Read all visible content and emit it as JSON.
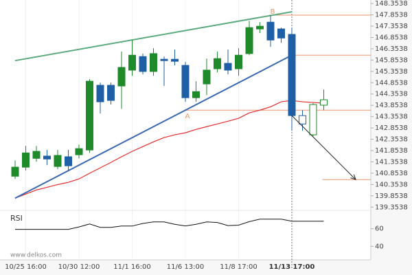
{
  "chart_data": {
    "type": "candlestick",
    "categories": [
      null,
      "10/25 16:00",
      null,
      null,
      null,
      null,
      "10/30 12:00",
      null,
      null,
      null,
      null,
      "11/1 16:00",
      null,
      null,
      null,
      null,
      "11/6 13:00",
      null,
      null,
      null,
      null,
      "11/8 17:00",
      null,
      null,
      null,
      null,
      "11/13 17:00",
      null,
      null,
      null
    ],
    "open": [
      140.72,
      141.12,
      141.51,
      141.61,
      141.15,
      141.58,
      141.67,
      141.88,
      144.74,
      144.74,
      144.71,
      145.41,
      146.01,
      145.35,
      145.89,
      145.89,
      145.62,
      144.19,
      144.8,
      145.47,
      145.71,
      145.47,
      146.14,
      147.23,
      147.53,
      147.23,
      146.99,
      143.4,
      142.55,
      143.86
    ],
    "high": [
      141.42,
      142.06,
      142.06,
      141.88,
      141.88,
      141.88,
      142.12,
      145.01,
      144.86,
      144.86,
      146.23,
      146.74,
      146.14,
      146.38,
      146.01,
      146.32,
      145.77,
      144.92,
      145.92,
      146.23,
      146.32,
      146.38,
      147.59,
      147.53,
      147.84,
      147.29,
      147.29,
      143.64,
      143.95,
      144.55
    ],
    "low": [
      140.6,
      140.97,
      141.36,
      141.21,
      141.03,
      140.97,
      141.51,
      141.75,
      143.49,
      143.89,
      143.7,
      145.16,
      145.22,
      145.16,
      144.71,
      145.62,
      144.01,
      144.01,
      144.31,
      145.31,
      145.22,
      145.16,
      146.07,
      147.05,
      146.44,
      146.62,
      142.73,
      142.73,
      142.49,
      143.64
    ],
    "close": [
      141.12,
      141.75,
      141.82,
      141.48,
      141.64,
      141.18,
      141.94,
      144.92,
      144.01,
      144.07,
      145.53,
      146.07,
      145.35,
      146.14,
      145.83,
      145.8,
      144.19,
      144.46,
      145.41,
      145.92,
      145.41,
      146.07,
      147.29,
      147.35,
      146.74,
      146.83,
      143.4,
      143.03,
      143.89,
      144.1
    ],
    "up_color": "#1e8a2a",
    "down_color": "#1f5fa6",
    "hollow_last": 3,
    "moving_average": {
      "color": "#e52b2b",
      "values": [
        139.75,
        139.93,
        140.11,
        140.23,
        140.35,
        140.45,
        140.6,
        140.85,
        141.09,
        141.33,
        141.58,
        141.82,
        142.03,
        142.24,
        142.43,
        142.55,
        142.64,
        142.79,
        142.91,
        143.03,
        143.15,
        143.28,
        143.52,
        143.64,
        143.79,
        144.01,
        144.07,
        144.01,
        143.98,
        143.95
      ]
    },
    "resistance": {
      "color": "#5aaa7e",
      "from": [
        0,
        145.83
      ],
      "to": [
        26,
        147.99
      ]
    },
    "support": {
      "color": "#3a68b0",
      "from": [
        0,
        139.75
      ],
      "to": [
        26,
        146.07
      ]
    },
    "levels": [
      {
        "value": 147.84,
        "from_index": 24,
        "label": "B"
      },
      {
        "value": 146.07,
        "from_index": 26
      },
      {
        "value": 143.64,
        "from_index": 16,
        "label": "A"
      },
      {
        "value": 140.57,
        "from_index": 29
      }
    ],
    "level_color": "#e8956a",
    "forecast": {
      "from": [
        26,
        143.4
      ],
      "to": [
        32,
        140.57
      ]
    },
    "ylim": [
      139.24,
      148.51
    ],
    "yticks": [
      148.3538,
      147.8538,
      147.3538,
      146.8538,
      146.3538,
      145.8538,
      145.3538,
      144.8538,
      144.3538,
      143.8538,
      143.3538,
      142.8538,
      142.3538,
      141.8538,
      141.3538,
      140.8538,
      140.3538,
      139.8538,
      139.3538
    ],
    "rsi": {
      "title": "RSI",
      "values": [
        59.2,
        59.2,
        59.2,
        59.2,
        59.2,
        59.2,
        62,
        65.4,
        61.5,
        61.5,
        63,
        63,
        66,
        67.7,
        67.7,
        65,
        63.1,
        65,
        67.7,
        67,
        63.5,
        64,
        68,
        70.8,
        70.8,
        70.8,
        68.5,
        68.5,
        68.5,
        68.5
      ],
      "ylim": [
        24.6,
        80.8
      ],
      "yticks": [
        60,
        40
      ]
    },
    "watermark": "www.delkos.com"
  }
}
